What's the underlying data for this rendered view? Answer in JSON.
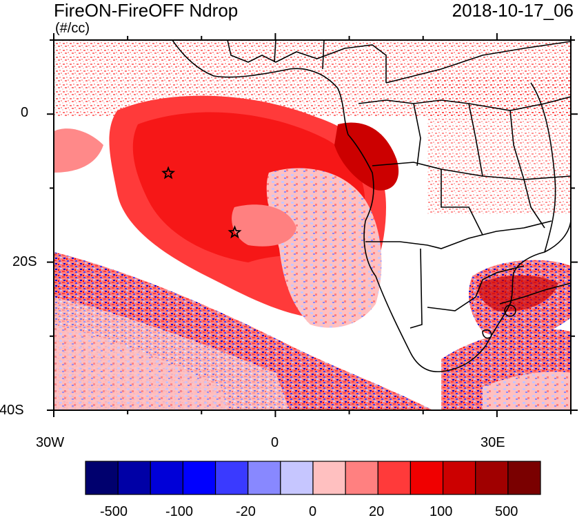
{
  "title": "FireON-FireOFF Ndrop",
  "date": "2018-10-17_06",
  "units": "(#/cc)",
  "axes": {
    "lon_range": [
      -30,
      40
    ],
    "lat_range": [
      -40,
      10
    ],
    "lon_ticks": [
      "30W",
      "0",
      "30E"
    ],
    "lat_ticks": [
      "0",
      "20S",
      "40S"
    ]
  },
  "markers": [
    {
      "name": "star",
      "lon": -14.5,
      "lat": -8
    },
    {
      "name": "star",
      "lon": -5.5,
      "lat": -16
    }
  ],
  "colorbar": {
    "colors": [
      "#00006e",
      "#0000a6",
      "#0000d8",
      "#0000ff",
      "#3a3aff",
      "#8888ff",
      "#c6c6ff",
      "#ffc0c0",
      "#ff8080",
      "#ff3a3a",
      "#f00000",
      "#cc0000",
      "#a00000",
      "#7a0000"
    ],
    "labels": [
      "-500",
      "-100",
      "-20",
      "0",
      "20",
      "100",
      "500"
    ]
  }
}
